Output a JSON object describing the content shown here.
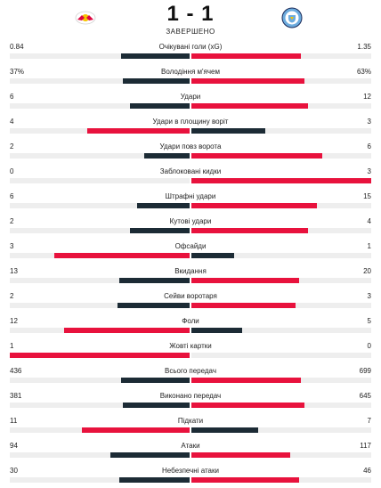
{
  "match": {
    "score": "1 - 1",
    "status": "ЗАВЕРШЕНО",
    "home_logo": "rb-leipzig-logo",
    "away_logo": "manchester-city-logo"
  },
  "colors": {
    "leader": "#e8123d",
    "trailer": "#1c2b35",
    "track": "#eeeeee"
  },
  "stats": [
    {
      "label": "Очікувані голи (xG)",
      "home": "0.84",
      "away": "1.35",
      "home_share": 0.38,
      "away_share": 0.61,
      "leader": "away"
    },
    {
      "label": "Володіння м'ячем",
      "home": "37%",
      "away": "63%",
      "home_share": 0.37,
      "away_share": 0.63,
      "leader": "away"
    },
    {
      "label": "Удари",
      "home": "6",
      "away": "12",
      "home_share": 0.33,
      "away_share": 0.65,
      "leader": "away"
    },
    {
      "label": "Удари в площину воріт",
      "home": "4",
      "away": "3",
      "home_share": 0.57,
      "away_share": 0.41,
      "leader": "home"
    },
    {
      "label": "Удари повз ворота",
      "home": "2",
      "away": "6",
      "home_share": 0.25,
      "away_share": 0.73,
      "leader": "away"
    },
    {
      "label": "Заблоковані кидки",
      "home": "0",
      "away": "3",
      "home_share": 0.0,
      "away_share": 1.0,
      "leader": "away"
    },
    {
      "label": "Штрафні удари",
      "home": "6",
      "away": "15",
      "home_share": 0.29,
      "away_share": 0.7,
      "leader": "away"
    },
    {
      "label": "Кутові удари",
      "home": "2",
      "away": "4",
      "home_share": 0.33,
      "away_share": 0.65,
      "leader": "away"
    },
    {
      "label": "Офсайди",
      "home": "3",
      "away": "1",
      "home_share": 0.75,
      "away_share": 0.24,
      "leader": "home"
    },
    {
      "label": "Вкидання",
      "home": "13",
      "away": "20",
      "home_share": 0.39,
      "away_share": 0.6,
      "leader": "away"
    },
    {
      "label": "Сейви воротаря",
      "home": "2",
      "away": "3",
      "home_share": 0.4,
      "away_share": 0.58,
      "leader": "away"
    },
    {
      "label": "Фоли",
      "home": "12",
      "away": "5",
      "home_share": 0.7,
      "away_share": 0.28,
      "leader": "home"
    },
    {
      "label": "Жовті картки",
      "home": "1",
      "away": "0",
      "home_share": 1.0,
      "away_share": 0.0,
      "leader": "home"
    },
    {
      "label": "Всього передач",
      "home": "436",
      "away": "699",
      "home_share": 0.38,
      "away_share": 0.61,
      "leader": "away"
    },
    {
      "label": "Виконано передач",
      "home": "381",
      "away": "645",
      "home_share": 0.37,
      "away_share": 0.63,
      "leader": "away"
    },
    {
      "label": "Підкати",
      "home": "11",
      "away": "7",
      "home_share": 0.6,
      "away_share": 0.37,
      "leader": "home"
    },
    {
      "label": "Атаки",
      "home": "94",
      "away": "117",
      "home_share": 0.44,
      "away_share": 0.55,
      "leader": "away"
    },
    {
      "label": "Небезпечні атаки",
      "home": "30",
      "away": "46",
      "home_share": 0.39,
      "away_share": 0.6,
      "leader": "away"
    }
  ]
}
